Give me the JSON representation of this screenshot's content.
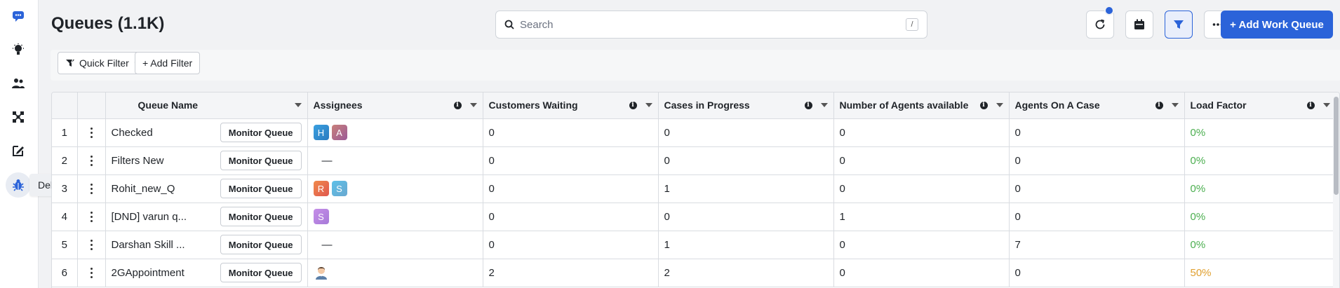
{
  "sidebar": {
    "tooltip": "Debug Console"
  },
  "header": {
    "title": "Queues (1.1K)",
    "search_placeholder": "Search",
    "search_shortcut": "/",
    "add_button_label": "+ Add Work Queue",
    "accent_color": "#2b63d9"
  },
  "filters": {
    "quick_filter_label": "Quick Filter",
    "add_filter_label": "+ Add Filter"
  },
  "table": {
    "columns": {
      "queue_name": "Queue Name",
      "assignees": "Assignees",
      "customers_waiting": "Customers Waiting",
      "cases_in_progress": "Cases in Progress",
      "agents_available": "Number of Agents available",
      "agents_on_case": "Agents On A Case",
      "load_factor": "Load Factor"
    },
    "monitor_label": "Monitor Queue",
    "rows": [
      {
        "num": "1",
        "name": "Checked",
        "assignees": "H A",
        "waiting": "0",
        "progress": "0",
        "available": "0",
        "on_case": "0",
        "load": "0%"
      },
      {
        "num": "2",
        "name": "Filters New",
        "assignees": "—",
        "waiting": "0",
        "progress": "0",
        "available": "0",
        "on_case": "0",
        "load": "0%"
      },
      {
        "num": "3",
        "name": "Rohit_new_Q",
        "assignees": "R S",
        "waiting": "0",
        "progress": "1",
        "available": "0",
        "on_case": "0",
        "load": "0%"
      },
      {
        "num": "4",
        "name": "[DND] varun q...",
        "assignees": "S",
        "waiting": "0",
        "progress": "0",
        "available": "1",
        "on_case": "0",
        "load": "0%"
      },
      {
        "num": "5",
        "name": "Darshan Skill ...",
        "assignees": "—",
        "waiting": "0",
        "progress": "1",
        "available": "0",
        "on_case": "7",
        "load": "0%"
      },
      {
        "num": "6",
        "name": "2GAppointment",
        "assignees": "",
        "waiting": "2",
        "progress": "2",
        "available": "0",
        "on_case": "0",
        "load": "50%"
      }
    ],
    "load_colors": {
      "low": "#4caf50",
      "mid": "#e0a030"
    }
  }
}
